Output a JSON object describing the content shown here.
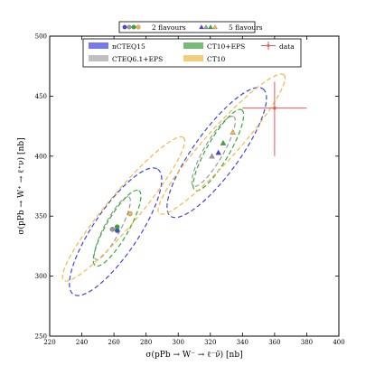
{
  "chart_data": {
    "type": "scatter",
    "title": "",
    "xlabel": "σ(pPb → W⁻ → ℓ⁻ν̄) [nb]",
    "ylabel": "σ(pPb → W⁺ → ℓ⁺ν) [nb]",
    "xlim": [
      220,
      400
    ],
    "ylim": [
      250,
      500
    ],
    "xticks": [
      220,
      240,
      260,
      280,
      300,
      320,
      340,
      360,
      380,
      400
    ],
    "yticks": [
      250,
      300,
      350,
      400,
      450,
      500
    ],
    "grid": false,
    "top_legend": {
      "placement": "top-center",
      "entries": [
        {
          "label": "2 flavours",
          "marker": "circle"
        },
        {
          "label": "5 flavours",
          "marker": "triangle"
        }
      ]
    },
    "legend": {
      "placement": "top-inside",
      "entries": [
        {
          "label": "nCTEQ15",
          "color": "#7777ee",
          "kind": "patch"
        },
        {
          "label": "CT10+EPS",
          "color": "#77bb77",
          "kind": "patch"
        },
        {
          "label": "data",
          "color": "#ee5555",
          "kind": "errorbar"
        },
        {
          "label": "CTEQ6.1+EPS",
          "color": "#c0c0c0",
          "kind": "patch"
        },
        {
          "label": "CT10",
          "color": "#f5cc7a",
          "kind": "patch"
        }
      ]
    },
    "series": [
      {
        "name": "nCTEQ15",
        "color": "#4444dd",
        "ellipses": [
          {
            "group": "2 flavours",
            "cx": 261,
            "cy": 337,
            "rx": 47,
            "ry": 14,
            "angle": 56
          },
          {
            "group": "5 flavours",
            "cx": 324,
            "cy": 403,
            "rx": 49,
            "ry": 14,
            "angle": 54
          }
        ],
        "points": [
          {
            "group": "2 flavours",
            "x": 262,
            "y": 338
          },
          {
            "group": "5 flavours",
            "x": 325,
            "y": 403
          }
        ]
      },
      {
        "name": "CTEQ6.1+EPS",
        "color": "#999999",
        "ellipses": [
          {
            "group": "2 flavours",
            "cx": 259,
            "cy": 340,
            "rx": 22,
            "ry": 5,
            "angle": 62
          },
          {
            "group": "5 flavours",
            "cx": 322,
            "cy": 404,
            "rx": 25,
            "ry": 6,
            "angle": 60
          }
        ],
        "points": [
          {
            "group": "2 flavours",
            "x": 259,
            "y": 339
          },
          {
            "group": "5 flavours",
            "x": 321,
            "y": 400
          }
        ]
      },
      {
        "name": "CT10+EPS",
        "color": "#33aa33",
        "ellipses": [
          {
            "group": "2 flavours",
            "cx": 262,
            "cy": 340,
            "rx": 27,
            "ry": 7,
            "angle": 60
          },
          {
            "group": "5 flavours",
            "cx": 325,
            "cy": 405,
            "rx": 29,
            "ry": 7,
            "angle": 60
          }
        ],
        "points": [
          {
            "group": "2 flavours",
            "x": 262,
            "y": 341
          },
          {
            "group": "5 flavours",
            "x": 328,
            "y": 411
          }
        ]
      },
      {
        "name": "CT10",
        "color": "#f0b84a",
        "ellipses": [
          {
            "group": "2 flavours",
            "cx": 266,
            "cy": 356,
            "rx": 58,
            "ry": 10,
            "angle": 50
          },
          {
            "group": "5 flavours",
            "cx": 327,
            "cy": 410,
            "rx": 58,
            "ry": 10,
            "angle": 48
          }
        ],
        "points": [
          {
            "group": "2 flavours",
            "x": 270,
            "y": 352
          },
          {
            "group": "5 flavours",
            "x": 334,
            "y": 420
          }
        ]
      }
    ],
    "data_point": {
      "name": "data",
      "color": "#ee5555",
      "x": 360,
      "y": 440,
      "xerr_low": 20,
      "xerr_high": 20,
      "yerr_low": 40,
      "yerr_high": 22
    }
  }
}
